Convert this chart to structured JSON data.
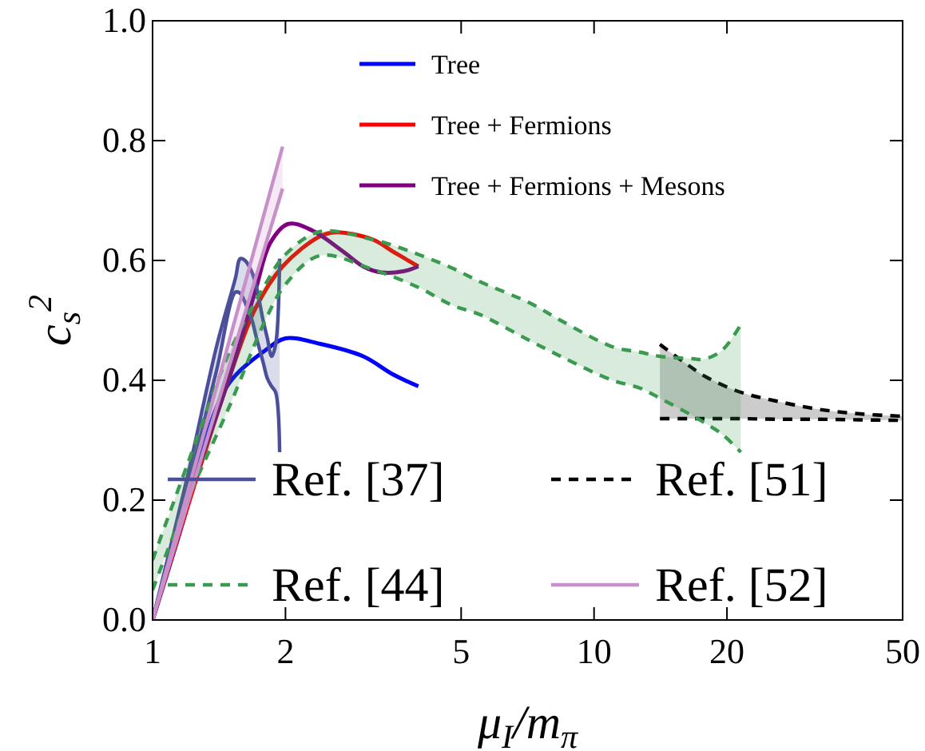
{
  "chart_data": {
    "type": "line",
    "xlabel": "μ$_{I}$/m$_{π}$",
    "ylabel": "c$_{s}$$^{2}$",
    "log": "x",
    "xlim": [
      1,
      50
    ],
    "xticks": [
      1,
      2,
      5,
      10,
      20,
      50
    ],
    "ylim": [
      0,
      1
    ],
    "yticks": [
      {
        "value": 0,
        "label": "0.0"
      },
      {
        "value": 0.2,
        "label": "0.2"
      },
      {
        "value": 0.4,
        "label": "0.4"
      },
      {
        "value": 0.6,
        "label": "0.6"
      },
      {
        "value": 0.8,
        "label": "0.8"
      },
      {
        "value": 1,
        "label": "1.0"
      }
    ],
    "grid": false,
    "legend": "bottom left",
    "marker": "none",
    "series": [
      {
        "name": "Tree",
        "color": "#0000ff",
        "x": [
          1,
          1.2,
          1.3,
          1.49,
          1.8,
          2.0,
          2.39,
          3.0,
          3.5,
          4.0
        ],
        "values": [
          0,
          0.19,
          0.29,
          0.395,
          0.45,
          0.47,
          0.461,
          0.44,
          0.41,
          0.39
        ]
      },
      {
        "name": "Tree + Fermions",
        "color": "#ff0000",
        "x": [
          1,
          1.49,
          1.71,
          1.97,
          2.39,
          2.6,
          3.15,
          3.5,
          4.0
        ],
        "values": [
          0,
          0.403,
          0.52,
          0.59,
          0.64,
          0.647,
          0.635,
          0.615,
          0.59
        ]
      },
      {
        "name": "Tree + Fermions + Mesons",
        "color": "#800080",
        "x": [
          1,
          1.2,
          1.49,
          1.71,
          1.85,
          2.03,
          2.3,
          2.7,
          3.0,
          3.3,
          3.7,
          4.0
        ],
        "values": [
          0,
          0.2,
          0.403,
          0.55,
          0.63,
          0.661,
          0.65,
          0.615,
          0.59,
          0.58,
          0.582,
          0.59
        ]
      },
      {
        "name": "Ref. [37]",
        "color": "#4b4f9a",
        "line_style": "solid",
        "x": [
          1,
          1.2,
          1.4,
          1.54,
          1.58,
          1.62,
          1.68,
          1.72,
          1.78,
          1.82,
          1.86,
          1.9,
          1.94
        ],
        "values": [
          0,
          0.24,
          0.46,
          0.57,
          0.603,
          0.6,
          0.58,
          0.555,
          0.5,
          0.47,
          0.44,
          0.46,
          0.603
        ],
        "lower": [
          0,
          0.22,
          0.42,
          0.547,
          0.545,
          0.53,
          0.5,
          0.47,
          0.43,
          0.403,
          0.39,
          0.38,
          0.28
        ],
        "upper": [
          0,
          0.24,
          0.46,
          0.57,
          0.603,
          0.6,
          0.58,
          0.555,
          0.5,
          0.47,
          0.44,
          0.46,
          0.603
        ]
      },
      {
        "color": "#4b4f9a",
        "line_style": "solid",
        "x": [
          1,
          1.2,
          1.4,
          1.54,
          1.58,
          1.62,
          1.68,
          1.72,
          1.78,
          1.82,
          1.86,
          1.9,
          1.94
        ],
        "values": [
          0,
          0.22,
          0.42,
          0.547,
          0.545,
          0.53,
          0.5,
          0.47,
          0.43,
          0.403,
          0.39,
          0.38,
          0.28
        ]
      },
      {
        "name": "Ref. [51]",
        "color": "#000000",
        "line_style": "dashed",
        "x": [
          14.1,
          16,
          18,
          21.5,
          26,
          32,
          40,
          50
        ],
        "values": [
          0.46,
          0.43,
          0.405,
          0.38,
          0.365,
          0.352,
          0.344,
          0.34
        ],
        "lower": [
          0.336,
          0.336,
          0.336,
          0.336,
          0.335,
          0.335,
          0.334,
          0.333
        ],
        "upper": [
          0.46,
          0.43,
          0.405,
          0.38,
          0.365,
          0.352,
          0.344,
          0.34
        ]
      },
      {
        "color": "#000000",
        "line_style": "dashed",
        "x": [
          14.1,
          16,
          18,
          21.5,
          26,
          32,
          40,
          50
        ],
        "values": [
          0.336,
          0.336,
          0.336,
          0.336,
          0.335,
          0.335,
          0.334,
          0.333
        ]
      },
      {
        "name": "Ref. [44]",
        "color": "#3a9a50",
        "line_style": "dashed",
        "x": [
          1,
          1.2,
          1.5,
          1.8,
          2,
          2.39,
          3.15,
          4,
          4.78,
          5.5,
          7.2,
          8.4,
          11,
          12.7,
          14.1,
          16.7,
          17.7,
          19.5,
          21.5
        ],
        "values": [
          0.1,
          0.26,
          0.45,
          0.56,
          0.61,
          0.648,
          0.635,
          0.61,
          0.587,
          0.565,
          0.528,
          0.5,
          0.456,
          0.447,
          0.44,
          0.436,
          0.435,
          0.45,
          0.493
        ],
        "lower": [
          0.05,
          0.2,
          0.36,
          0.5,
          0.56,
          0.608,
          0.585,
          0.555,
          0.525,
          0.51,
          0.465,
          0.44,
          0.4,
          0.387,
          0.37,
          0.341,
          0.33,
          0.31,
          0.28
        ],
        "upper": [
          0.1,
          0.26,
          0.45,
          0.56,
          0.61,
          0.648,
          0.635,
          0.61,
          0.587,
          0.565,
          0.528,
          0.5,
          0.456,
          0.447,
          0.44,
          0.436,
          0.435,
          0.45,
          0.493
        ]
      },
      {
        "color": "#3a9a50",
        "line_style": "dashed",
        "x": [
          1,
          1.2,
          1.5,
          1.8,
          2,
          2.39,
          3.15,
          4,
          4.78,
          5.5,
          7.2,
          8.4,
          11,
          12.7,
          14.1,
          16.7,
          17.7,
          19.5,
          21.5
        ],
        "values": [
          0.05,
          0.2,
          0.36,
          0.5,
          0.56,
          0.608,
          0.585,
          0.555,
          0.525,
          0.51,
          0.465,
          0.44,
          0.4,
          0.387,
          0.37,
          0.341,
          0.33,
          0.31,
          0.28
        ]
      },
      {
        "name": "Ref. [52]",
        "color": "#c890c8",
        "line_style": "solid",
        "x": [
          1,
          1.97
        ],
        "values": [
          0,
          0.79
        ],
        "lower": [
          0,
          0.72
        ],
        "upper": [
          0,
          0.79
        ]
      },
      {
        "color": "#c890c8",
        "line_style": "solid",
        "x": [
          1,
          1.97
        ],
        "values": [
          0,
          0.72
        ]
      }
    ]
  }
}
